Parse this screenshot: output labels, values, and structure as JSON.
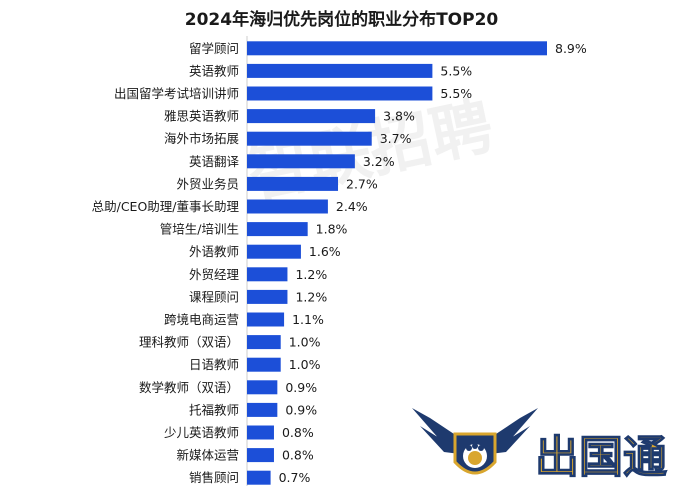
{
  "chart_data": {
    "type": "bar",
    "orientation": "horizontal",
    "title": "2024年海归优先岗位的职业分布TOP20",
    "xlabel": "",
    "ylabel": "",
    "categories": [
      "留学顾问",
      "英语教师",
      "出国留学考试培训讲师",
      "雅思英语教师",
      "海外市场拓展",
      "英语翻译",
      "外贸业务员",
      "总助/CEO助理/董事长助理",
      "管培生/培训生",
      "外语教师",
      "外贸经理",
      "课程顾问",
      "跨境电商运营",
      "理科教师（双语）",
      "日语教师",
      "数学教师（双语）",
      "托福教师",
      "少儿英语教师",
      "新媒体运营",
      "销售顾问"
    ],
    "values": [
      8.9,
      5.5,
      5.5,
      3.8,
      3.7,
      3.2,
      2.7,
      2.4,
      1.8,
      1.6,
      1.2,
      1.2,
      1.1,
      1.0,
      1.0,
      0.9,
      0.9,
      0.8,
      0.8,
      0.7
    ],
    "value_labels": [
      "8.9%",
      "5.5%",
      "5.5%",
      "3.8%",
      "3.7%",
      "3.2%",
      "2.7%",
      "2.4%",
      "1.8%",
      "1.6%",
      "1.2%",
      "1.2%",
      "1.1%",
      "1.0%",
      "1.0%",
      "0.9%",
      "0.9%",
      "0.8%",
      "0.8%",
      "0.7%"
    ],
    "unit": "%",
    "xlim": [
      0,
      8.9
    ],
    "grid": false,
    "legend": "none",
    "bar_color": "#1c4fd8"
  },
  "watermark": {
    "text": "智联招聘"
  },
  "logo": {
    "text": "出国通",
    "gold": "#d9a62e",
    "navy": "#1e3a6e"
  }
}
